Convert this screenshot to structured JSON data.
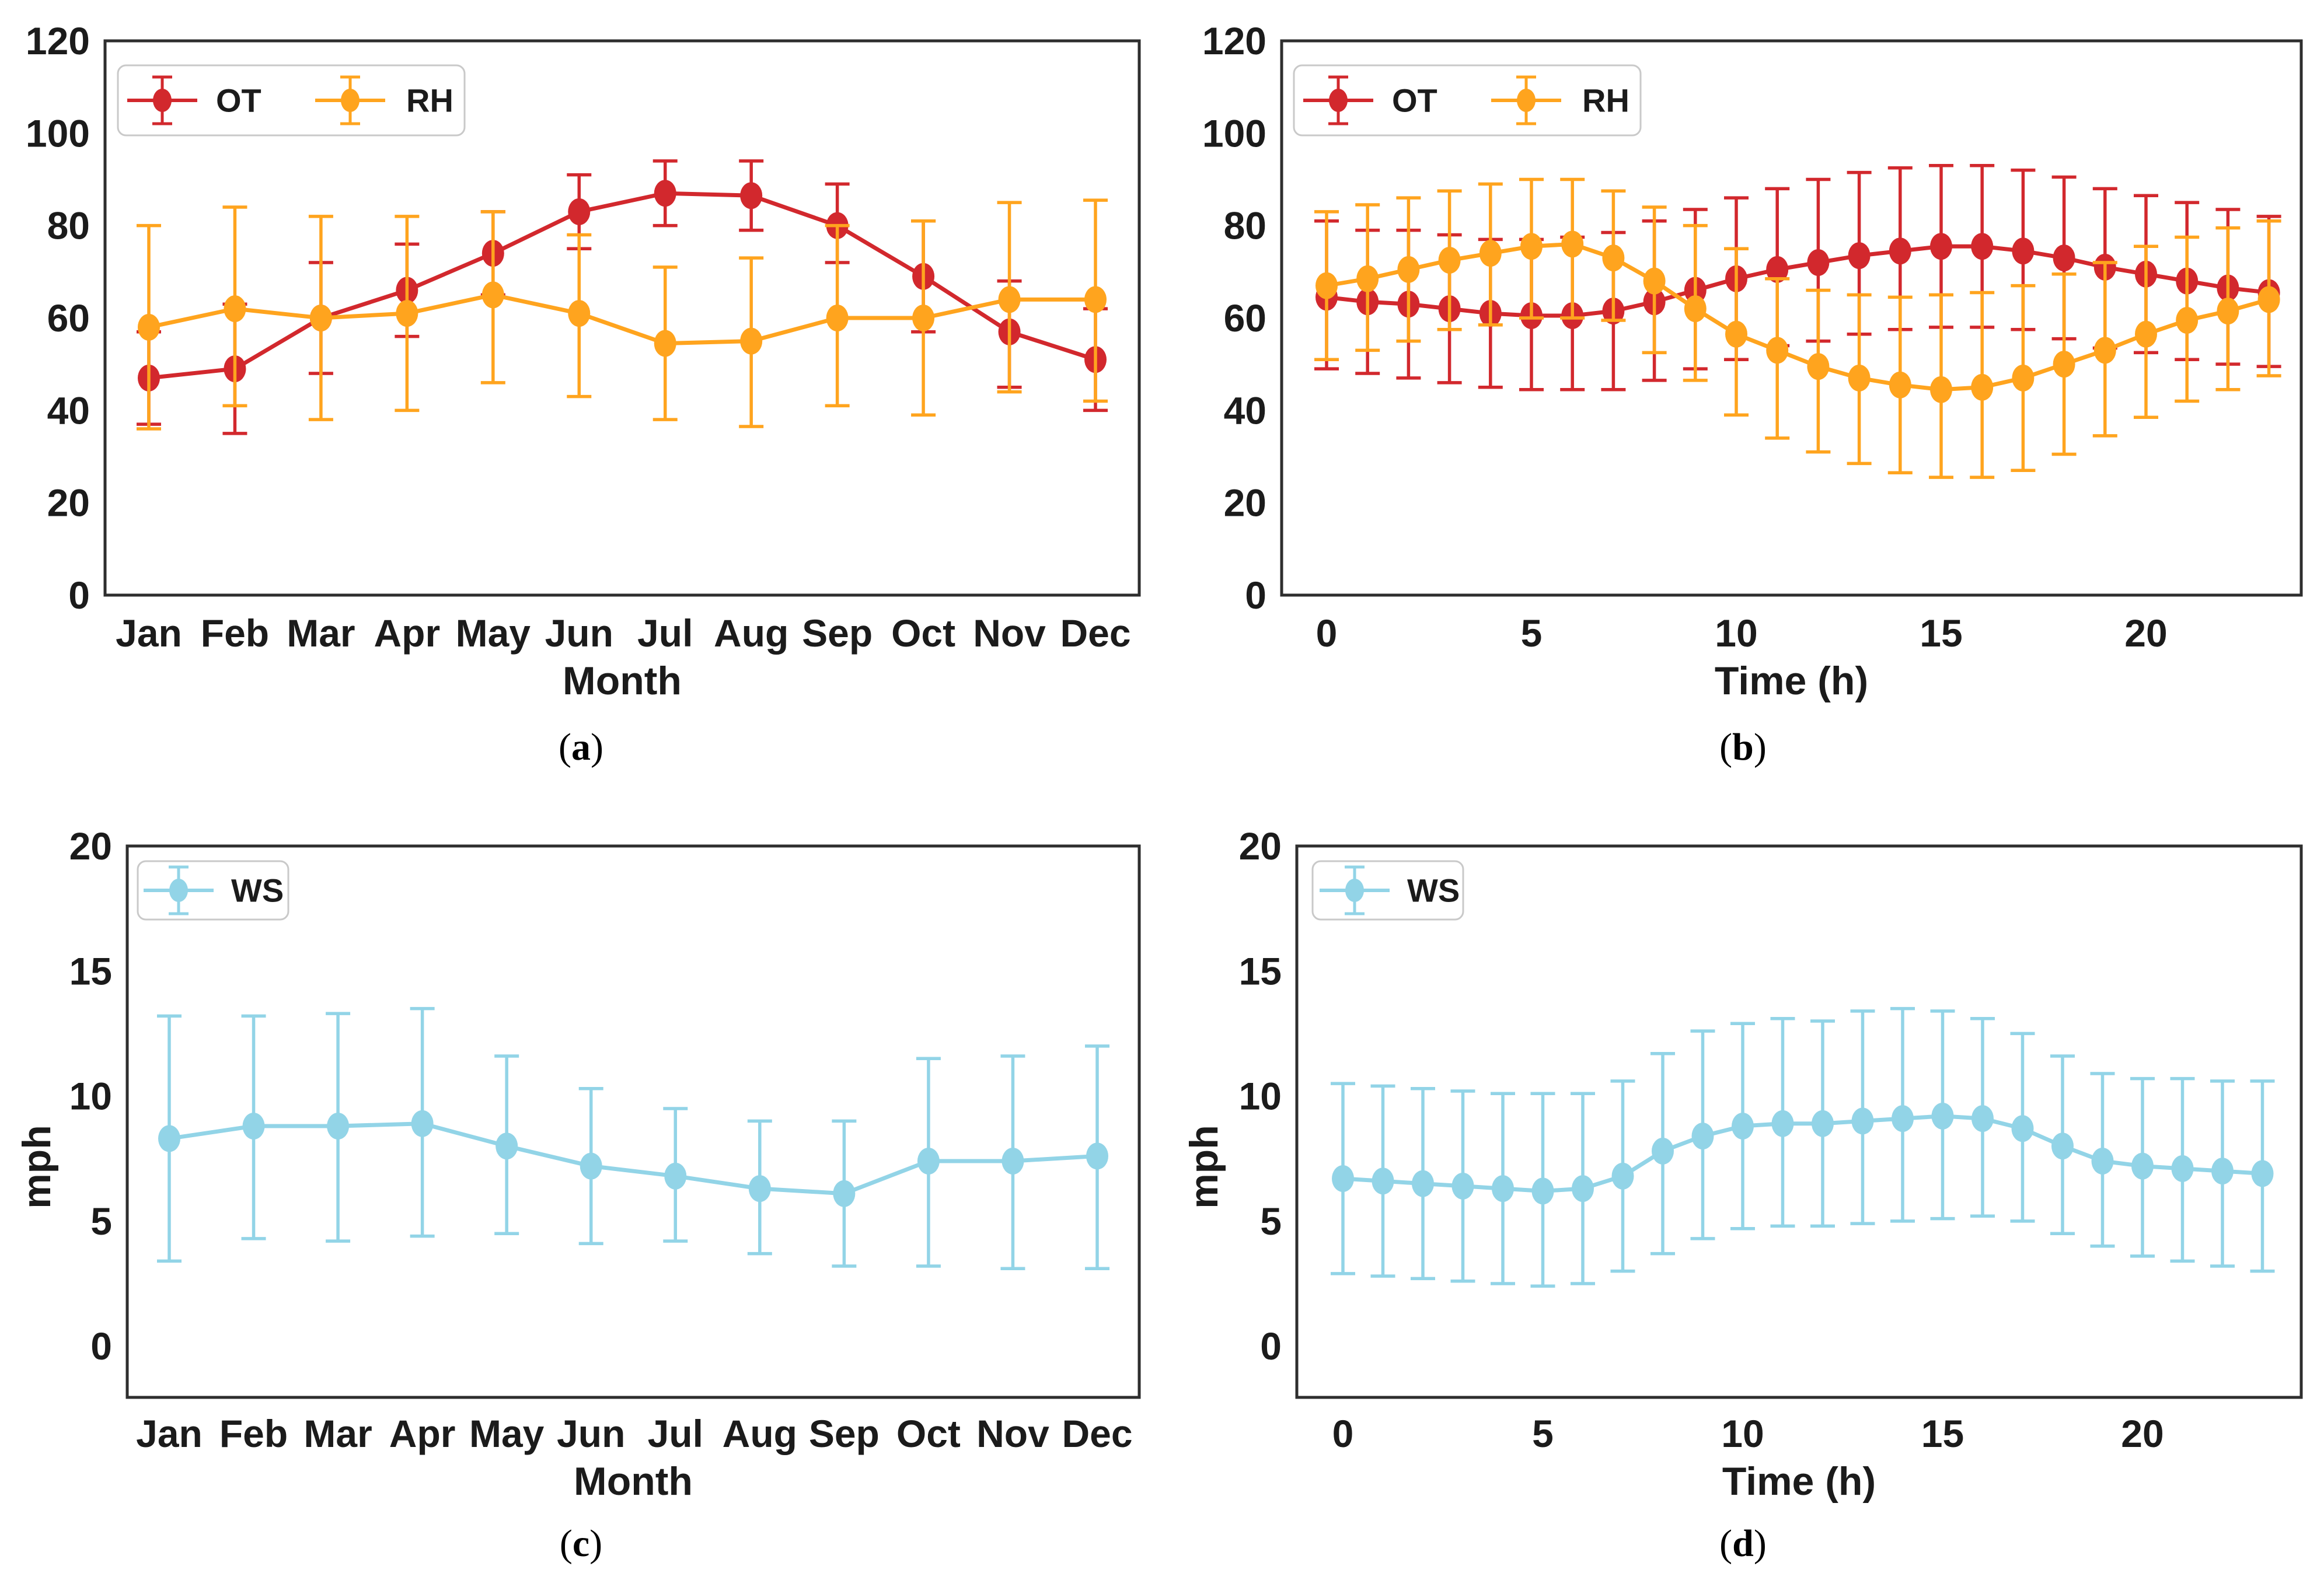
{
  "figure": {
    "background": "#ffffff"
  },
  "colors": {
    "ot": "#d2282d",
    "rh": "#ffa41e",
    "ws": "#92d4e7",
    "axis_border": "#2e2e2e",
    "text": "#1b1b1b",
    "legend_border": "#c9c9c9",
    "legend_bg": "#ffffff"
  },
  "captions": {
    "open": "(",
    "close": ")",
    "letters": {
      "a": "a",
      "b": "b",
      "c": "c",
      "d": "d"
    }
  },
  "chart_data": [
    {
      "id": "a",
      "type": "line",
      "x_type": "category",
      "categories": [
        "Jan",
        "Feb",
        "Mar",
        "Apr",
        "May",
        "Jun",
        "Jul",
        "Aug",
        "Sep",
        "Oct",
        "Nov",
        "Dec"
      ],
      "xlabel": "Month",
      "ylabel": "",
      "ylim": [
        0,
        120
      ],
      "y_ticks": [
        0,
        20,
        40,
        60,
        80,
        100,
        120
      ],
      "grid": false,
      "error_bars": true,
      "legend_position": "top-left",
      "series": [
        {
          "name": "OT",
          "color_key": "ot",
          "values": [
            47,
            49,
            60,
            66,
            74,
            83,
            87,
            86.5,
            80,
            69,
            57,
            51
          ],
          "err_low": [
            37,
            35,
            48,
            56,
            65,
            75,
            80,
            79,
            72,
            57,
            45,
            40
          ],
          "err_high": [
            57,
            63,
            72,
            76,
            83,
            91,
            94,
            94,
            89,
            81,
            68,
            62
          ]
        },
        {
          "name": "RH",
          "color_key": "rh",
          "values": [
            58,
            62,
            60,
            61,
            65,
            61,
            54.5,
            55,
            60,
            60,
            64,
            64
          ],
          "err_low": [
            36,
            41,
            38,
            40,
            46,
            43,
            38,
            36.5,
            41,
            39,
            44,
            42
          ],
          "err_high": [
            80,
            84,
            82,
            82,
            83,
            78,
            71,
            73,
            80,
            81,
            85,
            85.5
          ]
        }
      ]
    },
    {
      "id": "b",
      "type": "line",
      "x_type": "numeric",
      "x": [
        0,
        1,
        2,
        3,
        4,
        5,
        6,
        7,
        8,
        9,
        10,
        11,
        12,
        13,
        14,
        15,
        16,
        17,
        18,
        19,
        20,
        21,
        22,
        23
      ],
      "x_ticks": [
        0,
        5,
        10,
        15,
        20
      ],
      "xlabel": "Time (h)",
      "ylabel": "",
      "ylim": [
        0,
        120
      ],
      "y_ticks": [
        0,
        20,
        40,
        60,
        80,
        100,
        120
      ],
      "grid": false,
      "error_bars": true,
      "legend_position": "top-left",
      "series": [
        {
          "name": "OT",
          "color_key": "ot",
          "values": [
            64.5,
            63.5,
            63,
            62,
            61,
            60.5,
            60.5,
            61.5,
            63.5,
            66,
            68.5,
            70.5,
            72,
            73.5,
            74.5,
            75.5,
            75.5,
            74.5,
            73,
            71,
            69.5,
            68,
            66.5,
            65.5
          ],
          "err_low": [
            49,
            48,
            47,
            46,
            45,
            44.5,
            44.5,
            44.5,
            46.5,
            49,
            51,
            54,
            55,
            56.5,
            57.5,
            58,
            58,
            57.5,
            55.5,
            53.5,
            52.5,
            51,
            50,
            49.5
          ],
          "err_high": [
            81,
            79,
            79,
            78,
            77,
            77,
            77.5,
            78.5,
            81,
            83.5,
            86,
            88,
            90,
            91.5,
            92.5,
            93,
            93,
            92,
            90.5,
            88,
            86.5,
            85,
            83.5,
            82
          ]
        },
        {
          "name": "RH",
          "color_key": "rh",
          "values": [
            67,
            68.5,
            70.5,
            72.5,
            74,
            75.5,
            76,
            73,
            68,
            62,
            56.5,
            53,
            49.5,
            47,
            45.5,
            44.5,
            45,
            47,
            50,
            53,
            56.5,
            59.5,
            61.5,
            64
          ],
          "err_low": [
            51,
            53,
            55,
            57.5,
            58.5,
            60,
            60,
            59.5,
            52.5,
            46.5,
            39,
            34,
            31,
            28.5,
            26.5,
            25.5,
            25.5,
            27,
            30.5,
            34.5,
            38.5,
            42,
            44.5,
            47.5
          ],
          "err_high": [
            83,
            84.5,
            86,
            87.5,
            89,
            90,
            90,
            87.5,
            84,
            80,
            75,
            68.5,
            66,
            65,
            64.5,
            65,
            65.5,
            67,
            69.5,
            72,
            75.5,
            77.5,
            79.5,
            81
          ]
        }
      ]
    },
    {
      "id": "c",
      "type": "line",
      "x_type": "category",
      "categories": [
        "Jan",
        "Feb",
        "Mar",
        "Apr",
        "May",
        "Jun",
        "Jul",
        "Aug",
        "Sep",
        "Oct",
        "Nov",
        "Dec"
      ],
      "xlabel": "Month",
      "ylabel": "mph",
      "ylim": [
        -2.05,
        20
      ],
      "y_ticks": [
        0,
        5,
        10,
        15,
        20
      ],
      "grid": false,
      "error_bars": true,
      "legend_position": "top-left",
      "series": [
        {
          "name": "WS",
          "color_key": "ws",
          "values": [
            8.3,
            8.8,
            8.8,
            8.9,
            8.0,
            7.2,
            6.8,
            6.3,
            6.1,
            7.4,
            7.4,
            7.6
          ],
          "err_low": [
            3.4,
            4.3,
            4.2,
            4.4,
            4.5,
            4.1,
            4.2,
            3.7,
            3.2,
            3.2,
            3.1,
            3.1
          ],
          "err_high": [
            13.2,
            13.2,
            13.3,
            13.5,
            11.6,
            10.3,
            9.5,
            9.0,
            9.0,
            11.5,
            11.6,
            12.0
          ]
        }
      ]
    },
    {
      "id": "d",
      "type": "line",
      "x_type": "numeric",
      "x": [
        0,
        1,
        2,
        3,
        4,
        5,
        6,
        7,
        8,
        9,
        10,
        11,
        12,
        13,
        14,
        15,
        16,
        17,
        18,
        19,
        20,
        21,
        22,
        23
      ],
      "x_ticks": [
        0,
        5,
        10,
        15,
        20
      ],
      "xlabel": "Time (h)",
      "ylabel": "mph",
      "ylim": [
        -2.05,
        20
      ],
      "y_ticks": [
        0,
        5,
        10,
        15,
        20
      ],
      "grid": false,
      "error_bars": true,
      "legend_position": "top-left",
      "series": [
        {
          "name": "WS",
          "color_key": "ws",
          "values": [
            6.7,
            6.6,
            6.5,
            6.4,
            6.3,
            6.2,
            6.3,
            6.8,
            7.8,
            8.4,
            8.8,
            8.9,
            8.9,
            9.0,
            9.1,
            9.2,
            9.1,
            8.7,
            8.0,
            7.4,
            7.2,
            7.1,
            7.0,
            6.9
          ],
          "err_low": [
            2.9,
            2.8,
            2.7,
            2.6,
            2.5,
            2.4,
            2.5,
            3.0,
            3.7,
            4.3,
            4.7,
            4.8,
            4.8,
            4.9,
            5.0,
            5.1,
            5.2,
            5.0,
            4.5,
            4.0,
            3.6,
            3.4,
            3.2,
            3.0
          ],
          "err_high": [
            10.5,
            10.4,
            10.3,
            10.2,
            10.1,
            10.1,
            10.1,
            10.6,
            11.7,
            12.6,
            12.9,
            13.1,
            13.0,
            13.4,
            13.5,
            13.4,
            13.1,
            12.5,
            11.6,
            10.9,
            10.7,
            10.7,
            10.6,
            10.6
          ]
        }
      ]
    }
  ]
}
